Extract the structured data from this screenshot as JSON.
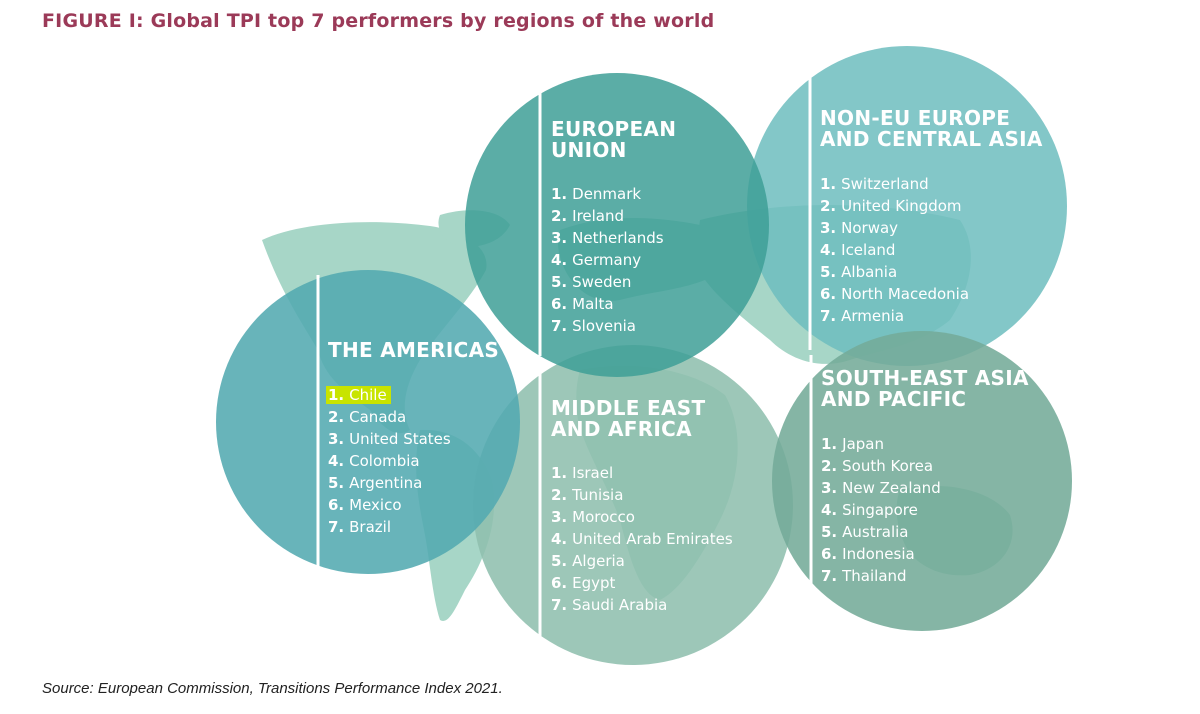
{
  "title": "FIGURE I: Global TPI top 7 performers by regions of the world",
  "source": "Source: European Commission, Transitions Performance Index 2021.",
  "colors": {
    "title": "#9b3a58",
    "americas": "#53aab0",
    "european_union": "#3e9f97",
    "non_eu_europe": "#6dbdbe",
    "middle_east_africa": "#8fbfae",
    "south_east_asia": "#74ab98",
    "map": "#a7d6c7",
    "highlight": "#c8e400"
  },
  "regions": {
    "european_union": {
      "title_lines": [
        "EUROPEAN",
        "UNION"
      ],
      "items": [
        {
          "rank": "1.",
          "name": "Denmark"
        },
        {
          "rank": "2.",
          "name": "Ireland"
        },
        {
          "rank": "3.",
          "name": "Netherlands"
        },
        {
          "rank": "4.",
          "name": "Germany"
        },
        {
          "rank": "5.",
          "name": "Sweden"
        },
        {
          "rank": "6.",
          "name": "Malta"
        },
        {
          "rank": "7.",
          "name": "Slovenia"
        }
      ]
    },
    "non_eu_europe": {
      "title_lines": [
        "NON-EU EUROPE",
        "AND CENTRAL ASIA"
      ],
      "items": [
        {
          "rank": "1.",
          "name": "Switzerland"
        },
        {
          "rank": "2.",
          "name": "United Kingdom"
        },
        {
          "rank": "3.",
          "name": "Norway"
        },
        {
          "rank": "4.",
          "name": "Iceland"
        },
        {
          "rank": "5.",
          "name": "Albania"
        },
        {
          "rank": "6.",
          "name": "North Macedonia"
        },
        {
          "rank": "7.",
          "name": "Armenia"
        }
      ]
    },
    "americas": {
      "title_lines": [
        "THE AMERICAS"
      ],
      "items": [
        {
          "rank": "1.",
          "name": "Chile"
        },
        {
          "rank": "2.",
          "name": "Canada"
        },
        {
          "rank": "3.",
          "name": "United States"
        },
        {
          "rank": "4.",
          "name": "Colombia"
        },
        {
          "rank": "5.",
          "name": "Argentina"
        },
        {
          "rank": "6.",
          "name": "Mexico"
        },
        {
          "rank": "7.",
          "name": "Brazil"
        }
      ]
    },
    "middle_east_africa": {
      "title_lines": [
        "MIDDLE EAST",
        "AND AFRICA"
      ],
      "items": [
        {
          "rank": "1.",
          "name": "Israel"
        },
        {
          "rank": "2.",
          "name": "Tunisia"
        },
        {
          "rank": "3.",
          "name": "Morocco"
        },
        {
          "rank": "4.",
          "name": "United Arab Emirates"
        },
        {
          "rank": "5.",
          "name": "Algeria"
        },
        {
          "rank": "6.",
          "name": "Egypt"
        },
        {
          "rank": "7.",
          "name": "Saudi Arabia"
        }
      ]
    },
    "south_east_asia": {
      "title_lines": [
        "SOUTH-EAST ASIA",
        "AND PACIFIC"
      ],
      "items": [
        {
          "rank": "1.",
          "name": "Japan"
        },
        {
          "rank": "2.",
          "name": "South Korea"
        },
        {
          "rank": "3.",
          "name": "New Zealand"
        },
        {
          "rank": "4.",
          "name": "Singapore"
        },
        {
          "rank": "5.",
          "name": "Australia"
        },
        {
          "rank": "6.",
          "name": "Indonesia"
        },
        {
          "rank": "7.",
          "name": "Thailand"
        }
      ]
    }
  }
}
